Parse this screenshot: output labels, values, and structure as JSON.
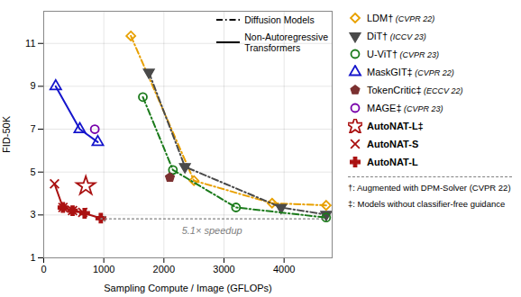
{
  "chart_data": {
    "type": "line",
    "xlabel": "Sampling Compute / Image (GFLOPs)",
    "ylabel": "FID-50K",
    "xlim": [
      0,
      4800
    ],
    "ylim": [
      1,
      12.5
    ],
    "xticks": [
      0,
      1000,
      2000,
      3000,
      4000
    ],
    "yticks": [
      1,
      3,
      5,
      7,
      9,
      11
    ],
    "grid": true,
    "legend": "right",
    "series": [
      {
        "name": "LDM† (CVPR 22)",
        "color": "#E8A000",
        "marker": "diamond",
        "line_style": "dashdot",
        "x": [
          1450,
          2500,
          3800,
          4700
        ],
        "values": [
          11.35,
          4.6,
          3.55,
          3.45
        ]
      },
      {
        "name": "DiT† (ICCV 23)",
        "color": "#4A4A4A",
        "marker": "triangle-down",
        "line_style": "dashdot",
        "x": [
          1750,
          2350,
          3950,
          4700
        ],
        "values": [
          9.65,
          5.25,
          3.35,
          3.02
        ]
      },
      {
        "name": "U-ViT† (CVPR 23)",
        "color": "#1A7A1A",
        "marker": "circle",
        "line_style": "dashdot",
        "x": [
          1650,
          2150,
          3200,
          4700
        ],
        "values": [
          8.5,
          5.1,
          3.35,
          2.88
        ]
      },
      {
        "name": "MaskGIT‡ (CVPR 22)",
        "color": "#1515CC",
        "marker": "triangle",
        "line_style": "solid",
        "x": [
          200,
          600,
          900
        ],
        "values": [
          9.0,
          7.0,
          6.4
        ]
      },
      {
        "name": "TokenCritic‡ (ECCV 22)",
        "color": "#7B3030",
        "marker": "pentagon",
        "line_style": "none",
        "x": [
          2100
        ],
        "values": [
          4.75
        ]
      },
      {
        "name": "MAGE‡ (CVPR 23)",
        "color": "#7700AA",
        "marker": "circle",
        "line_style": "none",
        "x": [
          850
        ],
        "values": [
          7.0
        ]
      },
      {
        "name": "AutoNAT-L‡",
        "color": "#AA1111",
        "marker": "star",
        "line_style": "none",
        "x": [
          700
        ],
        "values": [
          4.35
        ]
      },
      {
        "name": "AutoNAT-S",
        "color": "#AA1111",
        "marker": "x",
        "line_style": "solid",
        "x": [
          180,
          320,
          480,
          650
        ],
        "values": [
          4.45,
          3.35,
          3.2,
          3.12
        ]
      },
      {
        "name": "AutoNAT-L",
        "color": "#AA1111",
        "marker": "plus",
        "line_style": "solid",
        "x": [
          320,
          480,
          680,
          950
        ],
        "values": [
          3.35,
          3.2,
          3.08,
          2.85
        ]
      }
    ],
    "line_style_legend": [
      {
        "name": "Diffusion Models",
        "line_style": "dashdot"
      },
      {
        "name": "Non-Autoregressive\nTransformers",
        "line_style": "solid"
      }
    ],
    "annotations": [
      {
        "text": "5.1× speedup",
        "x": 2800,
        "y": 2.42,
        "arrow": {
          "x_start": 4650,
          "x_end": 950,
          "y": 2.82
        }
      }
    ],
    "notes": [
      "†: Augmented with DPM-Solver (CVPR 22)",
      "‡: Models without classifier-free guidance"
    ]
  }
}
